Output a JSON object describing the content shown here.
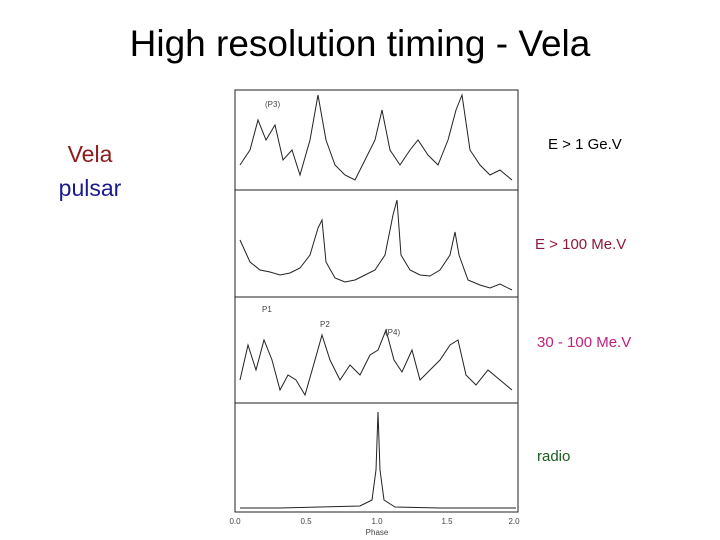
{
  "title": "High resolution timing - Vela",
  "subject": {
    "line1": "Vela",
    "line2": "pulsar"
  },
  "figure": {
    "panels": [
      {
        "label": "E > 1 Ge.V"
      },
      {
        "label": "E > 100 Me.V"
      },
      {
        "label": "30 - 100 Me.V"
      },
      {
        "label": "radio"
      }
    ],
    "peak_labels": [
      "(P3)",
      "P1",
      "P2",
      "(P4)"
    ],
    "x_ticks": [
      "0.0",
      "0.5",
      "1.0",
      "1.5",
      "2.0"
    ],
    "x_label": "Phase"
  }
}
